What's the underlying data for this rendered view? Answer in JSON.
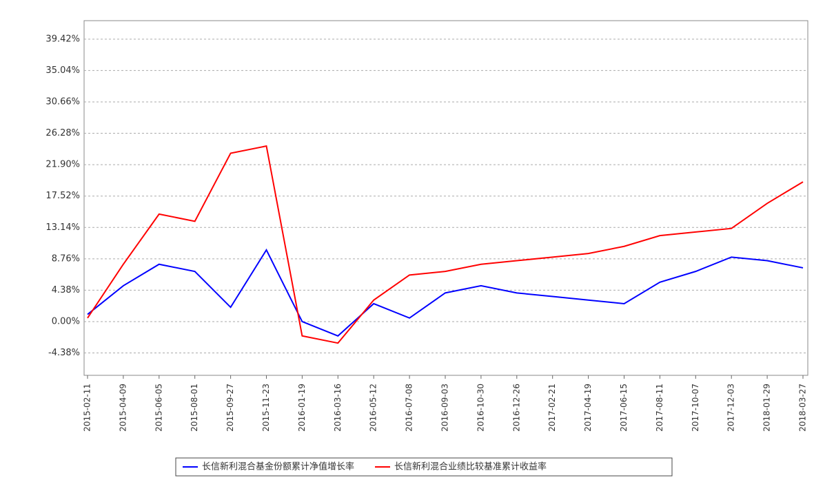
{
  "chart_data": {
    "type": "line",
    "categories": [
      "2015-02-11",
      "2015-04-09",
      "2015-06-05",
      "2015-08-01",
      "2015-09-27",
      "2015-11-23",
      "2016-01-19",
      "2016-03-16",
      "2016-05-12",
      "2016-07-08",
      "2016-09-03",
      "2016-10-30",
      "2016-12-26",
      "2017-02-21",
      "2017-04-19",
      "2017-06-15",
      "2017-08-11",
      "2017-10-07",
      "2017-12-03",
      "2018-01-29",
      "2018-03-27"
    ],
    "series": [
      {
        "name": "长信新利混合基金份额累计净值增长率",
        "color": "#0000ff",
        "values": [
          1,
          5,
          8,
          7,
          2,
          10,
          0,
          -2,
          2.5,
          0.5,
          4,
          5,
          4,
          3.5,
          3,
          2.5,
          5.5,
          7,
          9,
          8.5,
          7.5
        ]
      },
      {
        "name": "长信新利混合业绩比较基准累计收益率",
        "color": "#ff0000",
        "values": [
          0.5,
          8,
          15,
          14,
          23.5,
          24.5,
          -2,
          -3,
          3,
          6.5,
          7,
          8,
          8.5,
          9,
          9.5,
          10.5,
          12,
          12.5,
          13,
          16.5,
          19.5
        ]
      }
    ],
    "ylim": [
      -7.5,
      42
    ],
    "yticks": [
      {
        "value": -4.38,
        "label": "-4.38%"
      },
      {
        "value": 0,
        "label": "0.00%"
      },
      {
        "value": 4.38,
        "label": "4.38%"
      },
      {
        "value": 8.76,
        "label": "8.76%"
      },
      {
        "value": 13.14,
        "label": "13.14%"
      },
      {
        "value": 17.52,
        "label": "17.52%"
      },
      {
        "value": 21.9,
        "label": "21.90%"
      },
      {
        "value": 26.28,
        "label": "26.28%"
      },
      {
        "value": 30.66,
        "label": "30.66%"
      },
      {
        "value": 35.04,
        "label": "35.04%"
      },
      {
        "value": 39.42,
        "label": "39.42%"
      }
    ],
    "grid": true
  }
}
